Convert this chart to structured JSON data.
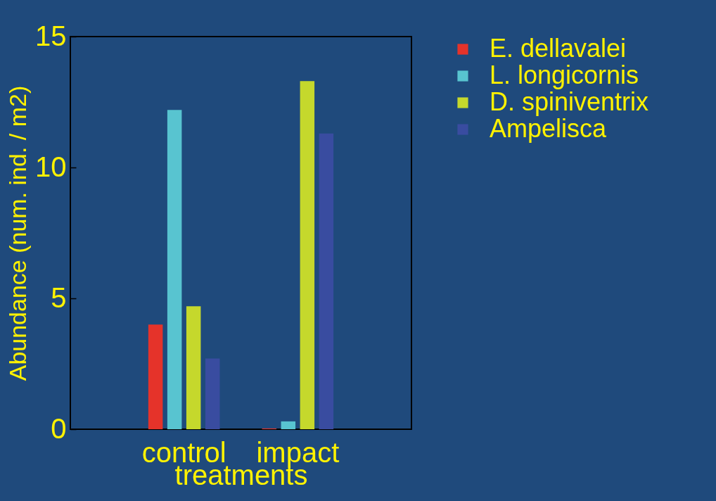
{
  "chart_data": {
    "type": "bar",
    "xlabel": "treatments",
    "ylabel": "Abundance (num. ind. / m2)",
    "categories": [
      "control",
      "impact"
    ],
    "series": [
      {
        "name": "E. dellavalei",
        "color": "#e5332a",
        "values": [
          4.0,
          0.03
        ]
      },
      {
        "name": "L. longicornis",
        "color": "#58c4d0",
        "values": [
          12.2,
          0.3
        ]
      },
      {
        "name": "D. spiniventrix",
        "color": "#c5d82c",
        "values": [
          4.7,
          13.3
        ]
      },
      {
        "name": "Ampelisca",
        "color": "#394ca0",
        "values": [
          2.7,
          11.3
        ]
      }
    ],
    "ylim": [
      0,
      15
    ],
    "yticks": [
      0,
      5,
      10,
      15
    ],
    "grid": false,
    "legend": "right"
  }
}
